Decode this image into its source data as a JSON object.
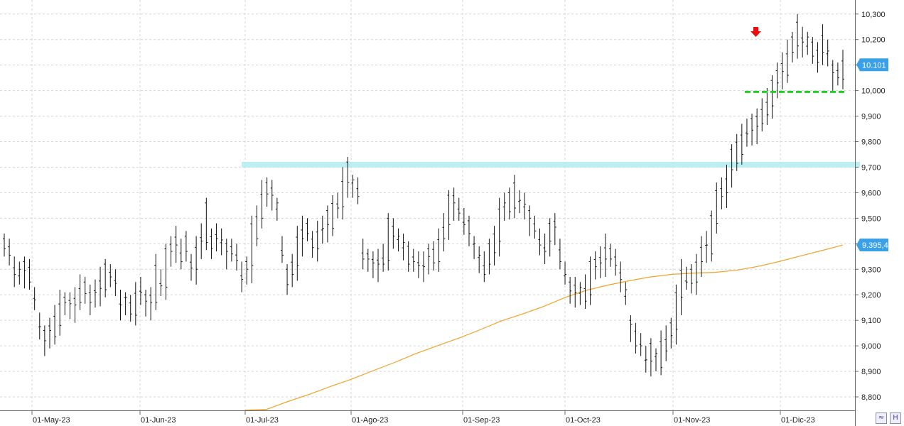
{
  "chart_data": {
    "type": "ohlc",
    "title": "",
    "xlabel": "",
    "ylabel": "",
    "ylim": [
      8.75,
      10.32
    ],
    "y_ticks": [
      "10,300",
      "10,200",
      "10,100",
      "10,000",
      "9,900",
      "9,800",
      "9,700",
      "9,600",
      "9,500",
      "9,400",
      "9,300",
      "9,200",
      "9,100",
      "9,000",
      "8,900",
      "8,800"
    ],
    "y_tick_values": [
      10.3,
      10.2,
      10.1,
      10.0,
      9.9,
      9.8,
      9.7,
      9.6,
      9.5,
      9.4,
      9.3,
      9.2,
      9.1,
      9.0,
      8.9,
      8.8
    ],
    "x_ticks": [
      "01-May-23",
      "01-Jun-23",
      "01-Jul-23",
      "01-Ago-23",
      "01-Sep-23",
      "01-Oct-23",
      "01-Nov-23",
      "01-Dic-23"
    ],
    "grid": true,
    "series": [
      {
        "kind": "price",
        "highs": [
          9.44,
          9.42,
          9.35,
          9.33,
          9.35,
          9.34,
          9.23,
          9.13,
          9.08,
          9.11,
          9.16,
          9.22,
          9.21,
          9.21,
          9.23,
          9.28,
          9.27,
          9.24,
          9.26,
          9.31,
          9.34,
          9.32,
          9.3,
          9.22,
          9.21,
          9.2,
          9.25,
          9.27,
          9.22,
          9.23,
          9.36,
          9.3,
          9.4,
          9.43,
          9.47,
          9.42,
          9.45,
          9.36,
          9.43,
          9.48,
          9.58,
          9.46,
          9.48,
          9.46,
          9.42,
          9.42,
          9.4,
          9.33,
          9.35,
          9.51,
          9.55,
          9.65,
          9.66,
          9.65,
          9.58,
          9.43,
          9.32,
          9.36,
          9.47,
          9.51,
          9.5,
          9.45,
          9.49,
          9.51,
          9.55,
          9.59,
          9.6,
          9.7,
          9.74,
          9.67,
          9.66,
          9.42,
          9.38,
          9.37,
          9.38,
          9.4,
          9.52,
          9.5,
          9.46,
          9.44,
          9.41,
          9.38,
          9.37,
          9.37,
          9.4,
          9.41,
          9.46,
          9.52,
          9.61,
          9.62,
          9.58,
          9.54,
          9.51,
          9.43,
          9.39,
          9.37,
          9.42,
          9.47,
          9.58,
          9.6,
          9.62,
          9.67,
          9.61,
          9.6,
          9.55,
          9.51,
          9.46,
          9.44,
          9.5,
          9.52,
          9.42,
          9.33,
          9.27,
          9.27,
          9.25,
          9.28,
          9.35,
          9.37,
          9.39,
          9.44,
          9.4,
          9.38,
          9.33,
          9.25,
          9.12,
          9.09,
          9.05,
          9.0,
          9.03,
          8.99,
          9.06,
          9.08,
          9.11,
          9.24,
          9.34,
          9.31,
          9.32,
          9.36,
          9.43,
          9.45,
          9.53,
          9.64,
          9.66,
          9.71,
          9.79,
          9.83,
          9.87,
          9.89,
          9.91,
          9.93,
          9.97,
          10.01,
          10.06,
          10.11,
          10.15,
          10.2,
          10.23,
          10.3,
          10.25,
          10.23,
          10.21,
          10.19,
          10.26,
          10.2,
          10.12,
          10.11,
          10.16
        ]
      },
      {
        "kind": "moving-average",
        "values": [
          9.395,
          9.373,
          9.352,
          9.33,
          9.311,
          9.296,
          9.288,
          9.285,
          9.28,
          9.27,
          9.255,
          9.238,
          9.218,
          9.19,
          9.155,
          9.125,
          9.098,
          9.063,
          9.03,
          9.0,
          8.97,
          8.935,
          8.903,
          8.87,
          8.841,
          8.81,
          8.782,
          8.751,
          8.748
        ]
      }
    ],
    "last_price": "10.101",
    "ma_value": "9.395,4",
    "resistance_band": 9.71,
    "support_line": 9.995
  },
  "controls": {
    "scale_icon": "zoom-fit-icon",
    "save_icon": "save-icon",
    "scale_glyph": "≈",
    "save_glyph": "H"
  },
  "colors": {
    "ma": "#f0a22a",
    "band": "#b2ebf2",
    "support": "#20d020",
    "arrow": "#e81010",
    "tag": "#3aa0e8"
  }
}
